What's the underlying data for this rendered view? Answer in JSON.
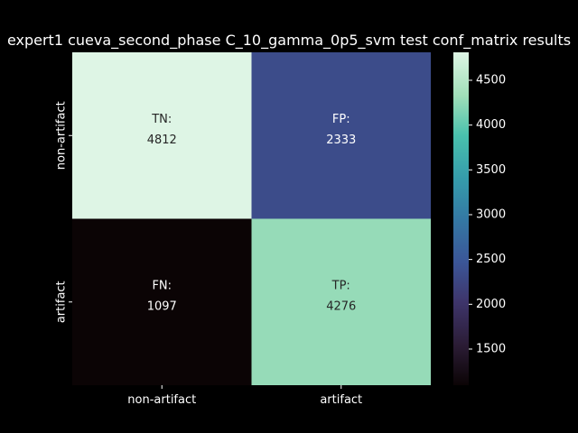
{
  "chart_data": {
    "type": "heatmap",
    "title": "expert1 cueva_second_phase C_10_gamma_0p5_svm test conf_matrix results",
    "x_categories": [
      "non-artifact",
      "artifact"
    ],
    "y_categories": [
      "non-artifact",
      "artifact"
    ],
    "cells": [
      [
        {
          "tag": "TN:",
          "value": 4812
        },
        {
          "tag": "FP:",
          "value": 2333
        }
      ],
      [
        {
          "tag": "FN:",
          "value": 1097
        },
        {
          "tag": "TP:",
          "value": 4276
        }
      ]
    ],
    "colormap": "mako",
    "colorbar": {
      "range": [
        1097,
        4812
      ],
      "ticks": [
        1500,
        2000,
        2500,
        3000,
        3500,
        4000,
        4500
      ]
    },
    "colors": {
      "background": "#000000",
      "text": "#ffffff"
    }
  }
}
